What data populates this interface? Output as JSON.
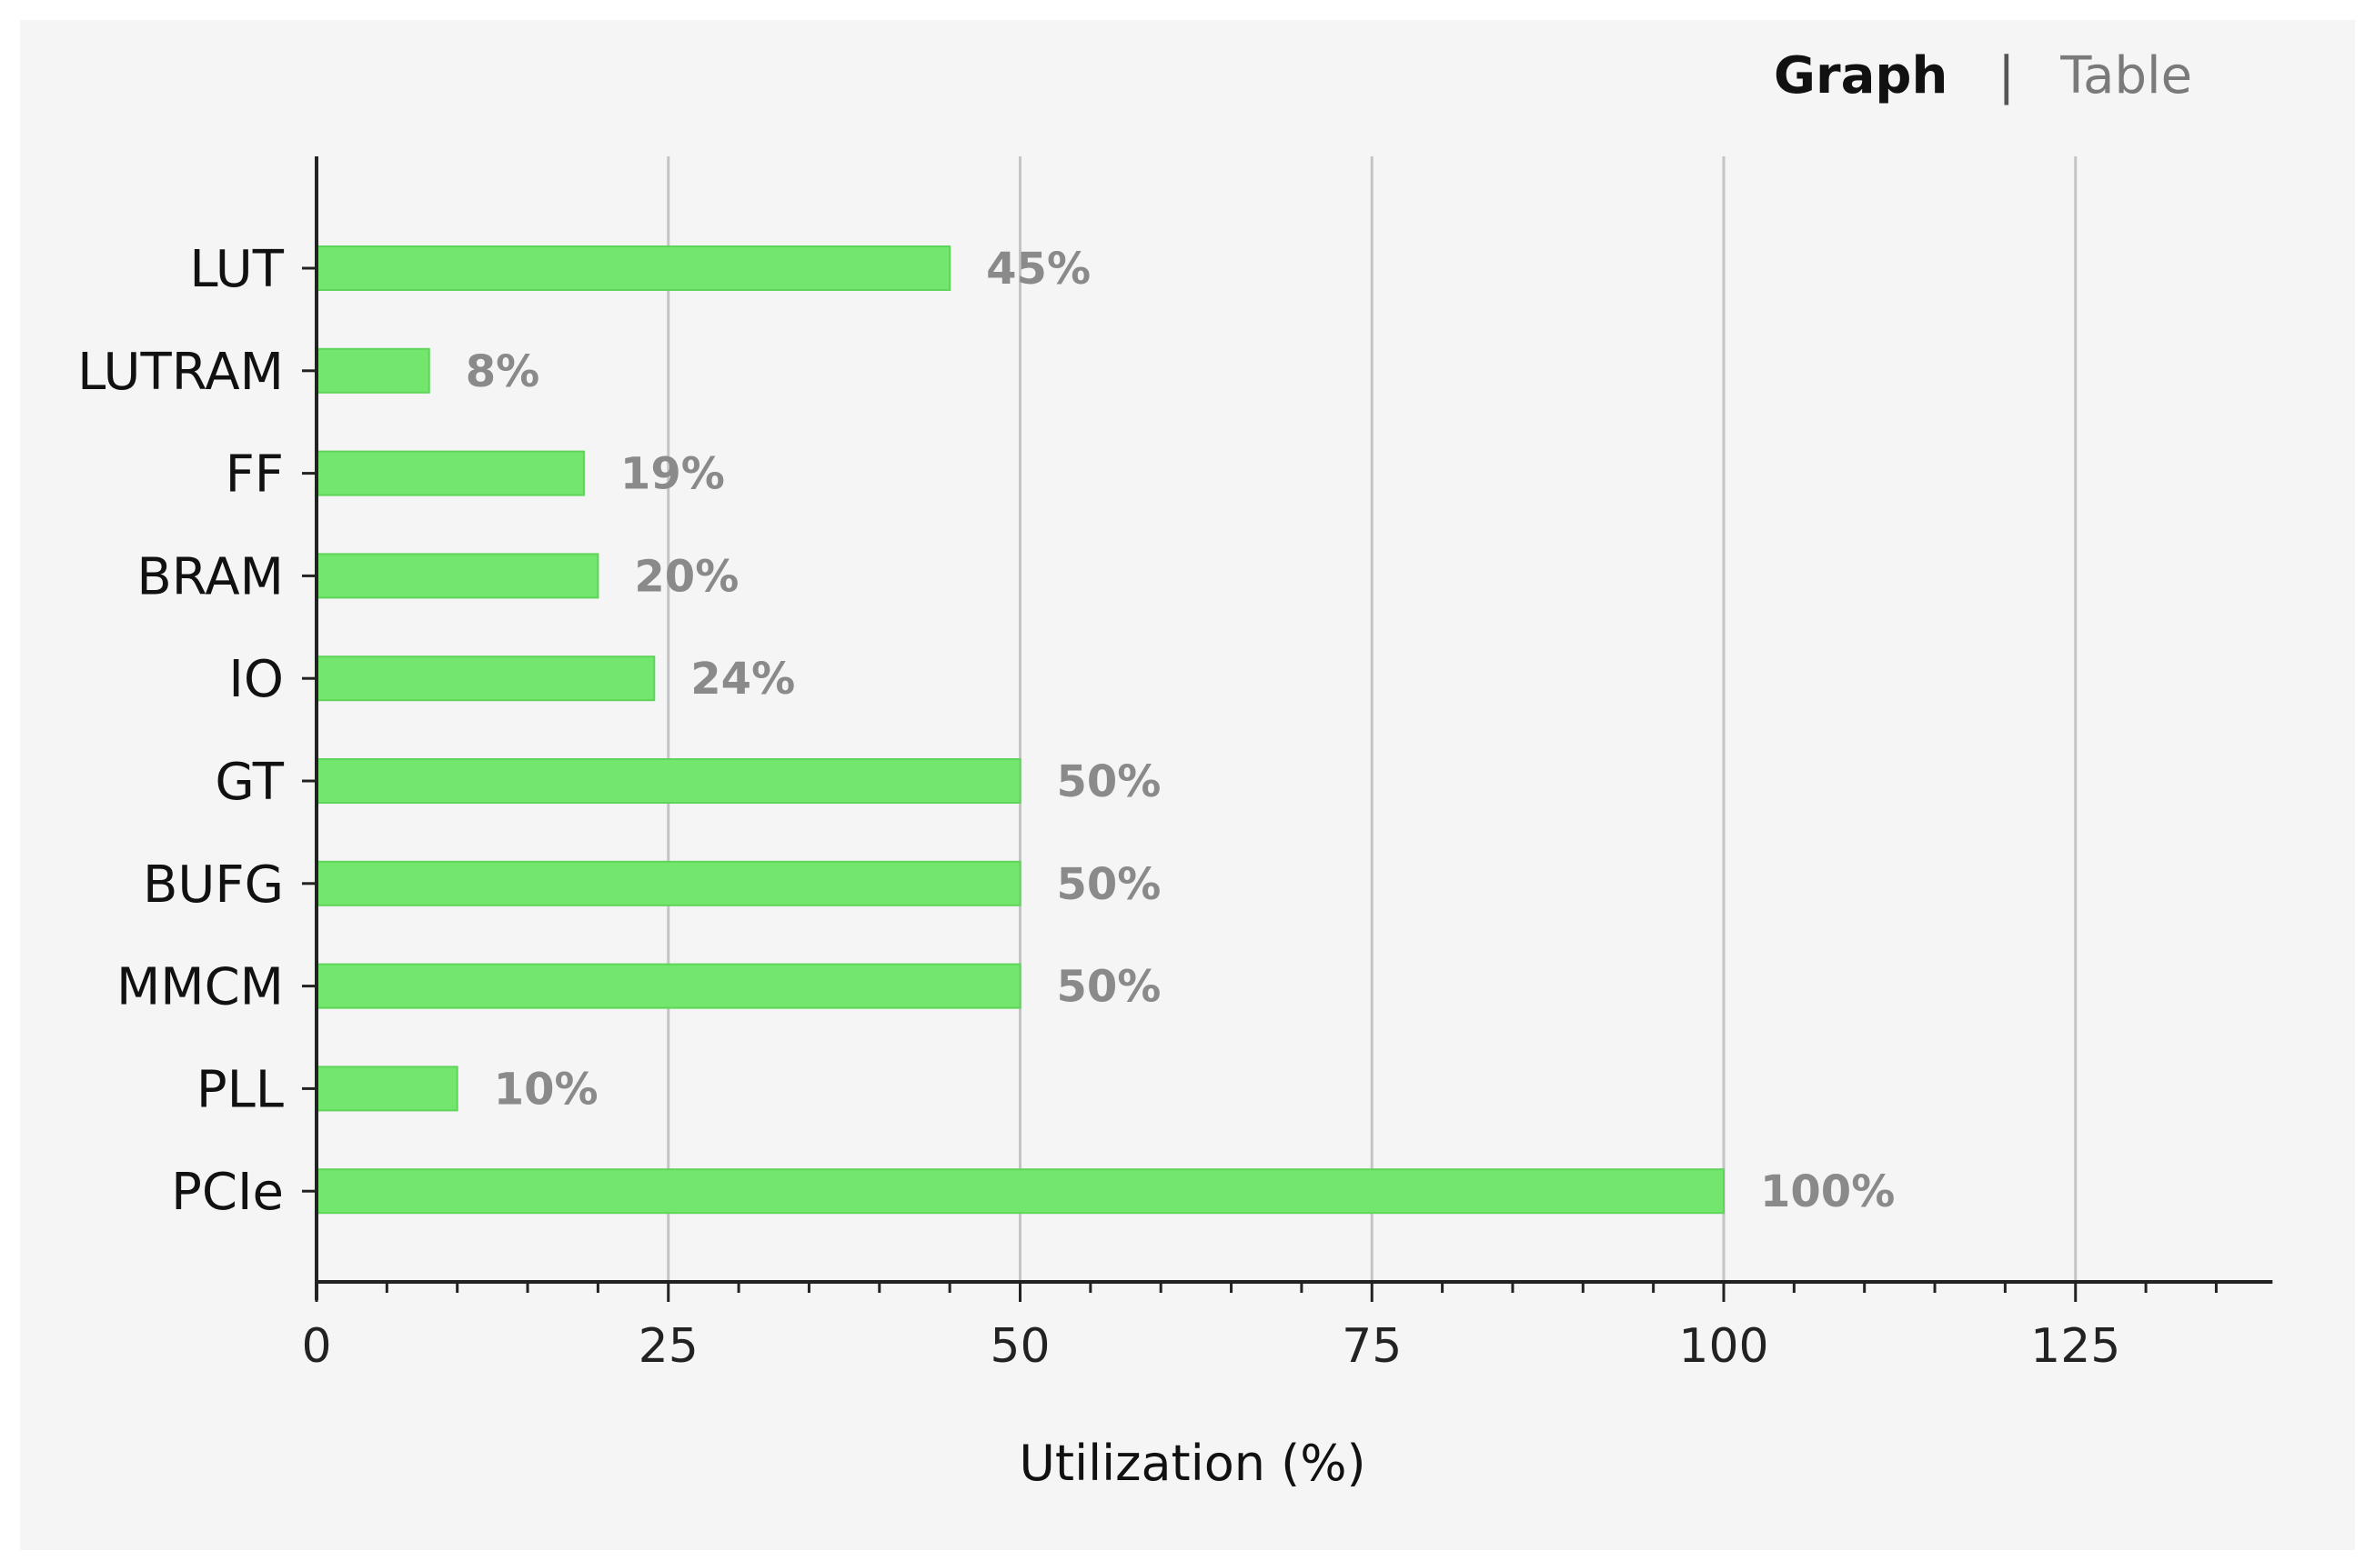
{
  "view_toggle": {
    "graph_label": "Graph",
    "separator": "|",
    "table_label": "Table",
    "active": "graph"
  },
  "chart_data": {
    "type": "bar",
    "orientation": "horizontal",
    "categories": [
      "LUT",
      "LUTRAM",
      "FF",
      "BRAM",
      "IO",
      "GT",
      "BUFG",
      "MMCM",
      "PLL",
      "PCIe"
    ],
    "values": [
      45,
      8,
      19,
      20,
      24,
      50,
      50,
      50,
      10,
      100
    ],
    "value_labels": [
      "45%",
      "8%",
      "19%",
      "20%",
      "24%",
      "50%",
      "50%",
      "50%",
      "10%",
      "100%"
    ],
    "title": "",
    "xlabel": "Utilization (%)",
    "ylabel": "",
    "xlim": [
      0,
      139
    ],
    "x_ticks": [
      0,
      25,
      50,
      75,
      100,
      125
    ],
    "x_tick_labels": [
      "0",
      "25",
      "50",
      "75",
      "100",
      "125"
    ],
    "minor_tick_step": 5,
    "grid": true,
    "legend": "none",
    "bar_color": "#73e66e",
    "bar_edge_color": "#5fd45a",
    "grid_color": "#c4c4c4",
    "value_label_color": "#8a8a8a"
  }
}
